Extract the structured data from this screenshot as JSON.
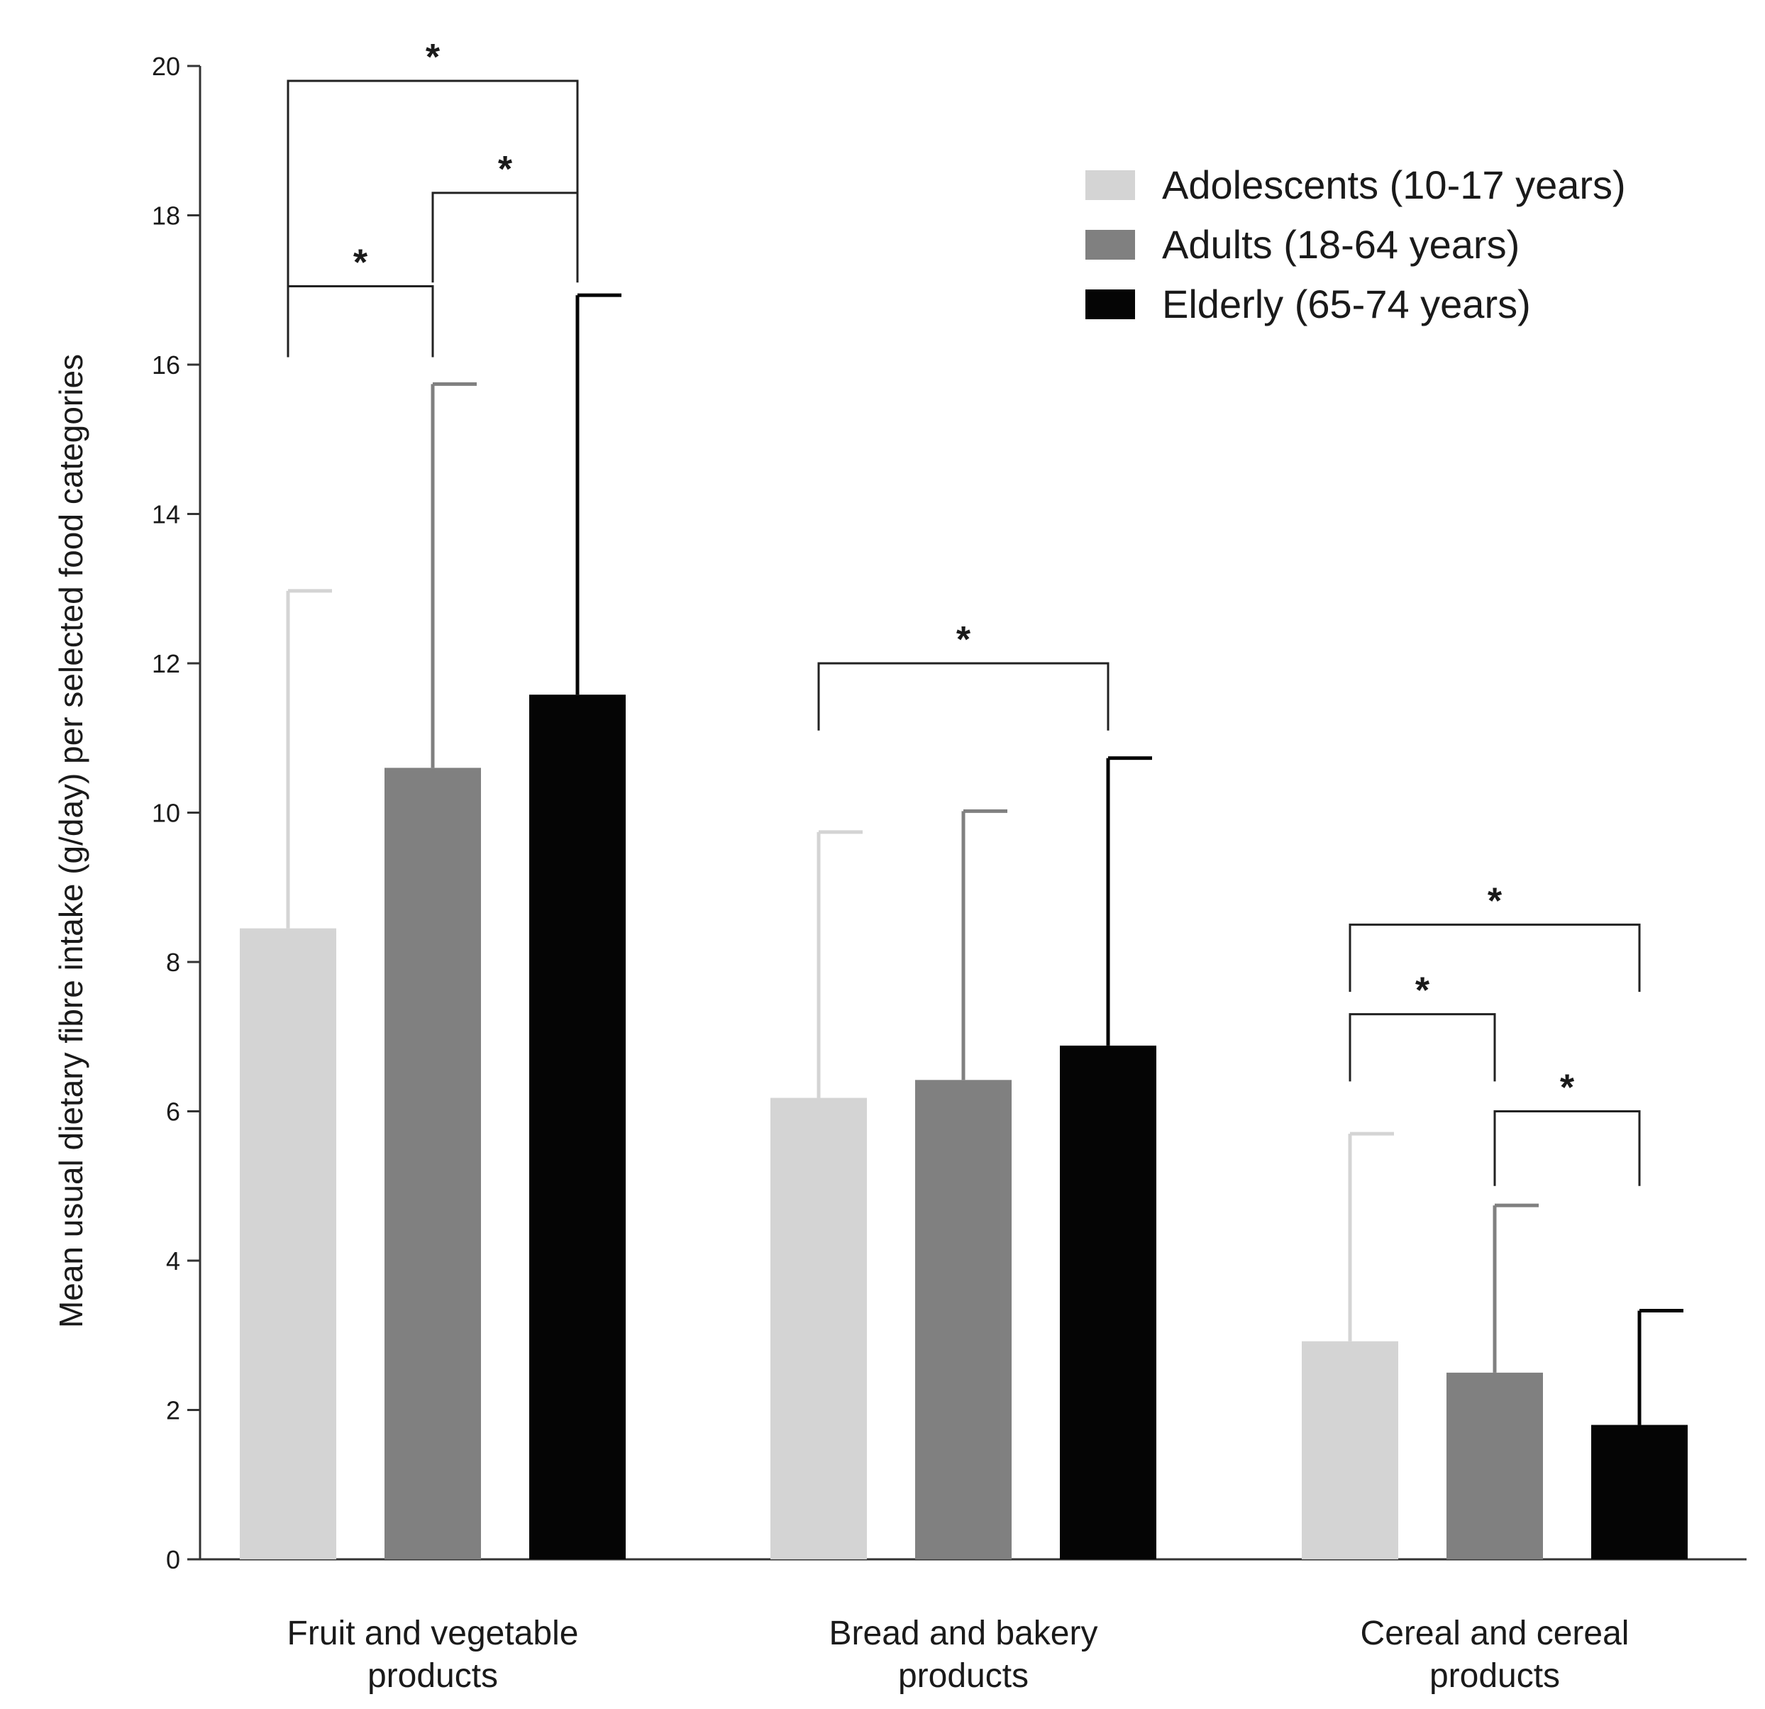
{
  "chart_data": {
    "type": "bar",
    "title": "",
    "xlabel": "",
    "ylabel": "Mean usual dietary fibre intake (g/day) per selected food categories",
    "ylim": [
      0,
      20
    ],
    "yticks": [
      0,
      2,
      4,
      6,
      8,
      10,
      12,
      14,
      16,
      18,
      20
    ],
    "grid": false,
    "legend_position": "top-right",
    "categories": [
      [
        "Fruit and vegetable",
        "products"
      ],
      [
        "Bread and bakery",
        "products"
      ],
      [
        "Cereal and cereal",
        "products"
      ]
    ],
    "series": [
      {
        "name": "Adolescents (10-17 years)",
        "color": "#d4d4d4",
        "values": [
          8.45,
          6.18,
          2.92
        ],
        "sd_upper": [
          12.97,
          9.74,
          5.7
        ]
      },
      {
        "name": "Adults (18-64 years)",
        "color": "#808080",
        "values": [
          10.6,
          6.42,
          2.5
        ],
        "sd_upper": [
          15.74,
          10.02,
          4.74
        ]
      },
      {
        "name": "Elderly (65-74 years)",
        "color": "#050505",
        "values": [
          11.58,
          6.88,
          1.8
        ],
        "sd_upper": [
          16.93,
          10.73,
          3.33
        ]
      }
    ],
    "significance": [
      {
        "category": 0,
        "from": 0,
        "to": 2,
        "level": 19.8,
        "from_start": 16.6,
        "to_start": 18.3,
        "label": "*"
      },
      {
        "category": 0,
        "from": 1,
        "to": 2,
        "level": 18.3,
        "from_start": 17.1,
        "to_start": 17.1,
        "label": "*"
      },
      {
        "category": 0,
        "from": 0,
        "to": 1,
        "level": 17.05,
        "from_start": 16.1,
        "to_start": 16.1,
        "label": "*"
      },
      {
        "category": 1,
        "from": 0,
        "to": 2,
        "level": 12.0,
        "from_start": 11.1,
        "to_start": 11.1,
        "label": "*"
      },
      {
        "category": 2,
        "from": 0,
        "to": 2,
        "level": 8.5,
        "from_start": 7.6,
        "to_start": 7.6,
        "label": "*"
      },
      {
        "category": 2,
        "from": 0,
        "to": 1,
        "level": 7.3,
        "from_start": 6.4,
        "to_start": 6.4,
        "label": "*"
      },
      {
        "category": 2,
        "from": 1,
        "to": 2,
        "level": 6.0,
        "from_start": 5.0,
        "to_start": 5.0,
        "label": "*"
      }
    ]
  }
}
